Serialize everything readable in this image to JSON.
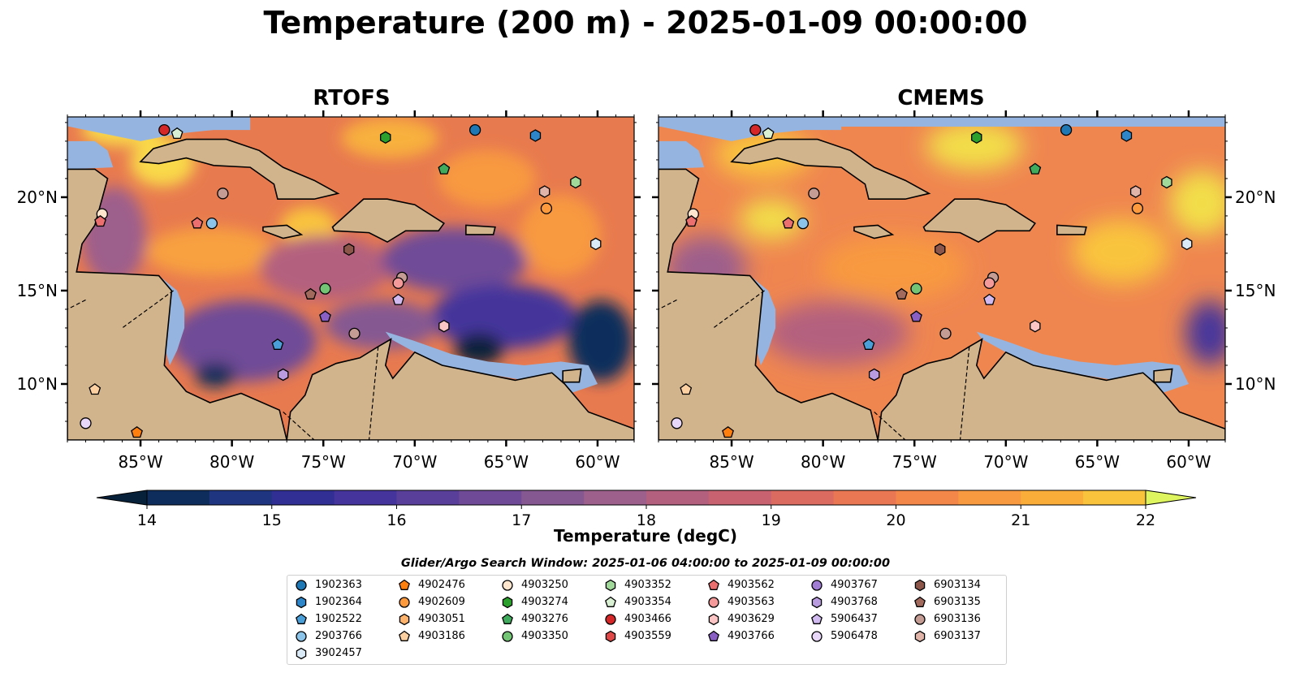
{
  "title": "Temperature (200 m) - 2025-01-09 00:00:00",
  "panels": [
    {
      "title": "RTOFS"
    },
    {
      "title": "CMEMS"
    }
  ],
  "map": {
    "lon_range": [
      -89,
      -58
    ],
    "lat_range": [
      7,
      24.3
    ],
    "lon_ticks": [
      "85°W",
      "80°W",
      "75°W",
      "70°W",
      "65°W",
      "60°W"
    ],
    "lat_ticks": [
      "20°N",
      "15°N",
      "10°N"
    ],
    "land_color": "#d2b48c",
    "shelf_color": "#95b5e0"
  },
  "colorbar": {
    "label": "Temperature (degC)",
    "min": 14,
    "max": 22,
    "tick_labels": [
      "14",
      "15",
      "16",
      "17",
      "18",
      "19",
      "20",
      "21",
      "22"
    ],
    "colors": [
      "#07213a",
      "#0f2d5c",
      "#1f3580",
      "#312f94",
      "#45349b",
      "#5a3f9a",
      "#6f4b97",
      "#855892",
      "#9d5f8c",
      "#b3607f",
      "#c96270",
      "#db6b60",
      "#ea7754",
      "#f3874a",
      "#f89a40",
      "#fbad3a",
      "#f9c43c",
      "#f2de4a",
      "#dff560"
    ]
  },
  "legend": {
    "title": "Glider/Argo Search Window: 2025-01-06 04:00:00 to 2025-01-09 00:00:00",
    "items": [
      {
        "id": "1902363",
        "marker": "circle",
        "color": "#1f77b4"
      },
      {
        "id": "1902364",
        "marker": "hexagon",
        "color": "#2e86c8"
      },
      {
        "id": "1902522",
        "marker": "pentagon",
        "color": "#4a9fd8"
      },
      {
        "id": "2903766",
        "marker": "circle",
        "color": "#8cc3e8"
      },
      {
        "id": "3902457",
        "marker": "hexagon",
        "color": "#dbeaf7"
      },
      {
        "id": "4902476",
        "marker": "pentagon",
        "color": "#ff7f0e"
      },
      {
        "id": "4902609",
        "marker": "circle",
        "color": "#fd9a3e"
      },
      {
        "id": "4903051",
        "marker": "hexagon",
        "color": "#fdb36b"
      },
      {
        "id": "4903186",
        "marker": "pentagon",
        "color": "#fdd0a2"
      },
      {
        "id": "4903250",
        "marker": "circle",
        "color": "#fee6ce"
      },
      {
        "id": "4903274",
        "marker": "hexagon",
        "color": "#2ca02c"
      },
      {
        "id": "4903276",
        "marker": "pentagon",
        "color": "#41ab5d"
      },
      {
        "id": "4903350",
        "marker": "circle",
        "color": "#74c476"
      },
      {
        "id": "4903352",
        "marker": "hexagon",
        "color": "#a1d99b"
      },
      {
        "id": "4903354",
        "marker": "pentagon",
        "color": "#d9f0d3"
      },
      {
        "id": "4903466",
        "marker": "circle",
        "color": "#d62728"
      },
      {
        "id": "4903559",
        "marker": "hexagon",
        "color": "#e04848"
      },
      {
        "id": "4903562",
        "marker": "pentagon",
        "color": "#ec6f6f"
      },
      {
        "id": "4903563",
        "marker": "circle",
        "color": "#f59a9a"
      },
      {
        "id": "4903629",
        "marker": "hexagon",
        "color": "#fcc5c5"
      },
      {
        "id": "4903766",
        "marker": "pentagon",
        "color": "#8a5fc4"
      },
      {
        "id": "4903767",
        "marker": "circle",
        "color": "#a17ed3"
      },
      {
        "id": "4903768",
        "marker": "hexagon",
        "color": "#b99be0"
      },
      {
        "id": "5906437",
        "marker": "pentagon",
        "color": "#d1baf0"
      },
      {
        "id": "5906478",
        "marker": "circle",
        "color": "#e8d7f9"
      },
      {
        "id": "6903134",
        "marker": "hexagon",
        "color": "#8c564b"
      },
      {
        "id": "6903135",
        "marker": "pentagon",
        "color": "#a16a5d"
      },
      {
        "id": "6903136",
        "marker": "circle",
        "color": "#c49c94"
      },
      {
        "id": "6903137",
        "marker": "hexagon",
        "color": "#e0b4a8"
      }
    ]
  },
  "floats": [
    {
      "id": "4903466",
      "lon": -83.7,
      "lat": 23.6
    },
    {
      "id": "4903354",
      "lon": -83.0,
      "lat": 23.4
    },
    {
      "id": "1902363",
      "lon": -66.7,
      "lat": 23.6
    },
    {
      "id": "1902364",
      "lon": -63.4,
      "lat": 23.3
    },
    {
      "id": "4903274",
      "lon": -71.6,
      "lat": 23.2
    },
    {
      "id": "4903276",
      "lon": -68.4,
      "lat": 21.5
    },
    {
      "id": "4903352",
      "lon": -61.2,
      "lat": 20.8
    },
    {
      "id": "6903137",
      "lon": -62.9,
      "lat": 20.3
    },
    {
      "id": "4902609",
      "lon": -62.8,
      "lat": 19.4
    },
    {
      "id": "6903136",
      "lon": -80.5,
      "lat": 20.2
    },
    {
      "id": "4903250",
      "lon": -87.1,
      "lat": 19.1
    },
    {
      "id": "4903562",
      "lon": -87.2,
      "lat": 18.7
    },
    {
      "id": "4903562",
      "lon": -81.9,
      "lat": 18.6
    },
    {
      "id": "2903766",
      "lon": -81.1,
      "lat": 18.6
    },
    {
      "id": "3902457",
      "lon": -60.1,
      "lat": 17.5
    },
    {
      "id": "6903134",
      "lon": -73.6,
      "lat": 17.2
    },
    {
      "id": "6903136",
      "lon": -70.7,
      "lat": 15.7
    },
    {
      "id": "4903563",
      "lon": -70.9,
      "lat": 15.4
    },
    {
      "id": "6903135",
      "lon": -75.7,
      "lat": 14.8
    },
    {
      "id": "4903350",
      "lon": -74.9,
      "lat": 15.1
    },
    {
      "id": "5906437",
      "lon": -70.9,
      "lat": 14.5
    },
    {
      "id": "4903766",
      "lon": -74.9,
      "lat": 13.6
    },
    {
      "id": "6903136",
      "lon": -73.3,
      "lat": 12.7
    },
    {
      "id": "4903629",
      "lon": -68.4,
      "lat": 13.1
    },
    {
      "id": "1902522",
      "lon": -77.5,
      "lat": 12.1
    },
    {
      "id": "4903768",
      "lon": -77.2,
      "lat": 10.5
    },
    {
      "id": "4903186",
      "lon": -87.5,
      "lat": 9.7
    },
    {
      "id": "5906478",
      "lon": -88.0,
      "lat": 7.9
    },
    {
      "id": "4902476",
      "lon": -85.2,
      "lat": 7.4
    }
  ]
}
